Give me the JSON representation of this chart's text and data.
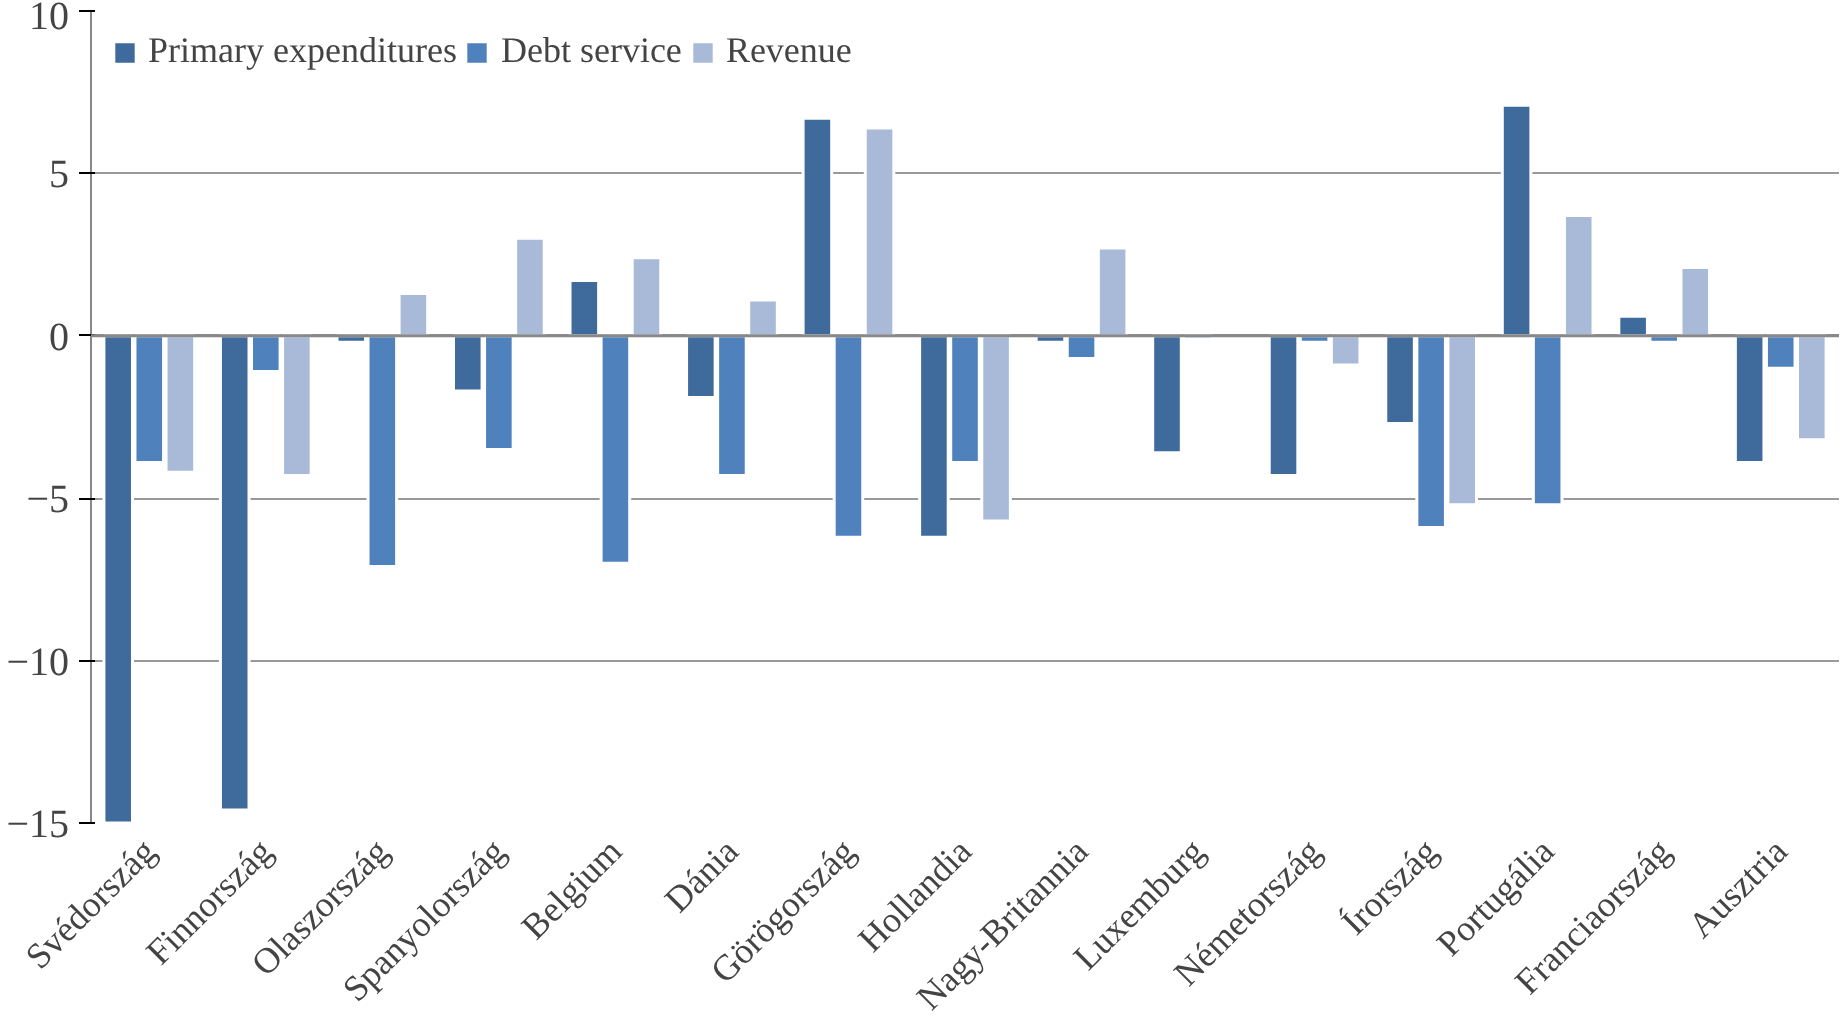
{
  "chart_data": {
    "type": "bar",
    "categories": [
      "Svédország",
      "Finnország",
      "Olaszország",
      "Spanyolország",
      "Belgium",
      "Dánia",
      "Görögország",
      "Hollandia",
      "Nagy-Britannia",
      "Luxemburg",
      "Németország",
      "Írország",
      "Portugália",
      "Franciaország",
      "Ausztria"
    ],
    "series": [
      {
        "name": "Primary expenditures",
        "color": "#3f6a9c",
        "values": [
          -15,
          -14.6,
          -0.2,
          -1.7,
          1.7,
          -1.9,
          6.7,
          -6.2,
          -0.2,
          -3.6,
          -4.3,
          -2.7,
          7.1,
          0.6,
          -3.9
        ]
      },
      {
        "name": "Debt service",
        "color": "#4f81bd",
        "values": [
          -3.9,
          -1.1,
          -7.1,
          -3.5,
          -7.0,
          -4.3,
          -6.2,
          -3.9,
          -0.7,
          -0.1,
          -0.2,
          -5.9,
          -5.2,
          -0.2,
          -1.0
        ]
      },
      {
        "name": "Revenue",
        "color": "#a9b9d8",
        "values": [
          -4.2,
          -4.3,
          1.3,
          3.0,
          2.4,
          1.1,
          6.4,
          -5.7,
          2.7,
          null,
          -0.9,
          -5.2,
          3.7,
          2.1,
          -3.2
        ]
      }
    ],
    "ylim": [
      -15,
      10
    ],
    "yticks": [
      -15,
      -10,
      -5,
      0,
      5,
      10
    ],
    "grid": "y",
    "legend": "top left"
  }
}
